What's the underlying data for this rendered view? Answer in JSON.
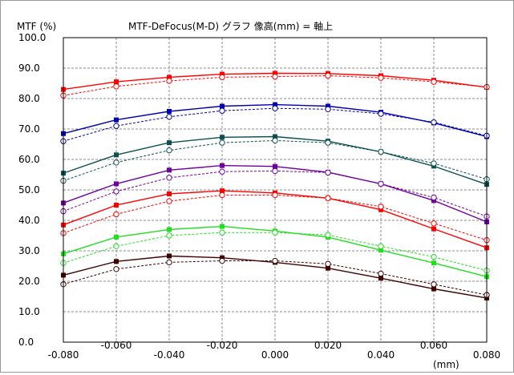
{
  "chart_data": {
    "type": "line",
    "title": "MTF-DeFocus(M-D) グラフ 像高(mm) = 軸上",
    "ylabel": "MTF (%)",
    "xlabel": "(mm)",
    "xlim": [
      -0.08,
      0.08
    ],
    "ylim": [
      0,
      100
    ],
    "grid": true,
    "x": [
      -0.08,
      -0.06,
      -0.04,
      -0.02,
      0.0,
      0.02,
      0.04,
      0.06,
      0.08
    ],
    "x_tick_labels": [
      "-0.080",
      "-0.060",
      "-0.040",
      "-0.020",
      "0.000",
      "0.020",
      "0.040",
      "0.060",
      "0.080"
    ],
    "y_tick_labels": [
      "0.0",
      "10.0",
      "20.0",
      "30.0",
      "40.0",
      "50.0",
      "60.0",
      "70.0",
      "80.0",
      "90.0",
      "100.0"
    ],
    "series": [
      {
        "color": "#ff0000",
        "style": "solid",
        "marker": "filled-square",
        "values": [
          83.0,
          85.5,
          87.0,
          88.0,
          88.3,
          88.2,
          87.5,
          86.0,
          83.7
        ]
      },
      {
        "color": "#ff0000",
        "style": "dashed",
        "marker": "open-circle",
        "values": [
          81.0,
          84.0,
          85.8,
          87.0,
          87.2,
          87.5,
          86.8,
          85.5,
          83.8
        ]
      },
      {
        "color": "#0000aa",
        "style": "solid",
        "marker": "filled-square",
        "values": [
          68.5,
          73.0,
          75.8,
          77.5,
          78.0,
          77.5,
          75.5,
          72.0,
          67.5
        ]
      },
      {
        "color": "#0000aa",
        "style": "dashed",
        "marker": "open-circle",
        "values": [
          66.0,
          71.0,
          74.0,
          76.0,
          76.8,
          76.5,
          75.0,
          72.2,
          67.8
        ]
      },
      {
        "color": "#0c5050",
        "style": "solid",
        "marker": "filled-square",
        "values": [
          55.5,
          61.5,
          65.5,
          67.3,
          67.5,
          66.0,
          62.5,
          57.8,
          51.8
        ]
      },
      {
        "color": "#0c5050",
        "style": "dashed",
        "marker": "open-circle",
        "values": [
          53.0,
          59.0,
          63.0,
          65.5,
          66.2,
          65.5,
          62.5,
          58.7,
          53.5
        ]
      },
      {
        "color": "#7000a0",
        "style": "solid",
        "marker": "filled-square",
        "values": [
          45.7,
          52.0,
          56.5,
          58.0,
          57.7,
          55.8,
          52.0,
          46.5,
          39.5
        ]
      },
      {
        "color": "#7000a0",
        "style": "dashed",
        "marker": "open-circle",
        "values": [
          43.0,
          49.5,
          54.0,
          56.0,
          56.2,
          55.7,
          52.0,
          47.5,
          41.3
        ]
      },
      {
        "color": "#ff0000",
        "style": "solid",
        "marker": "filled-square",
        "values": [
          38.5,
          45.0,
          48.7,
          49.7,
          49.0,
          47.3,
          43.5,
          37.2,
          31.0
        ]
      },
      {
        "color": "#ff0000",
        "style": "dashed",
        "marker": "open-circle",
        "values": [
          35.8,
          42.0,
          46.3,
          48.3,
          48.3,
          47.3,
          44.5,
          39.0,
          33.5
        ]
      },
      {
        "color": "#22dd22",
        "style": "solid",
        "marker": "filled-square",
        "values": [
          29.0,
          34.5,
          37.0,
          38.0,
          36.5,
          34.5,
          30.2,
          26.0,
          21.5
        ]
      },
      {
        "color": "#22dd22",
        "style": "dashed",
        "marker": "open-circle",
        "values": [
          26.0,
          31.5,
          35.0,
          36.0,
          36.0,
          35.2,
          31.5,
          28.0,
          23.5
        ]
      },
      {
        "color": "#400000",
        "style": "solid",
        "marker": "filled-square",
        "values": [
          22.0,
          26.5,
          28.3,
          27.7,
          26.2,
          24.3,
          21.0,
          17.5,
          14.5
        ]
      },
      {
        "color": "#400000",
        "style": "dashed",
        "marker": "open-circle",
        "values": [
          19.0,
          24.0,
          26.2,
          26.7,
          26.7,
          25.7,
          22.5,
          19.0,
          15.5
        ]
      }
    ]
  }
}
